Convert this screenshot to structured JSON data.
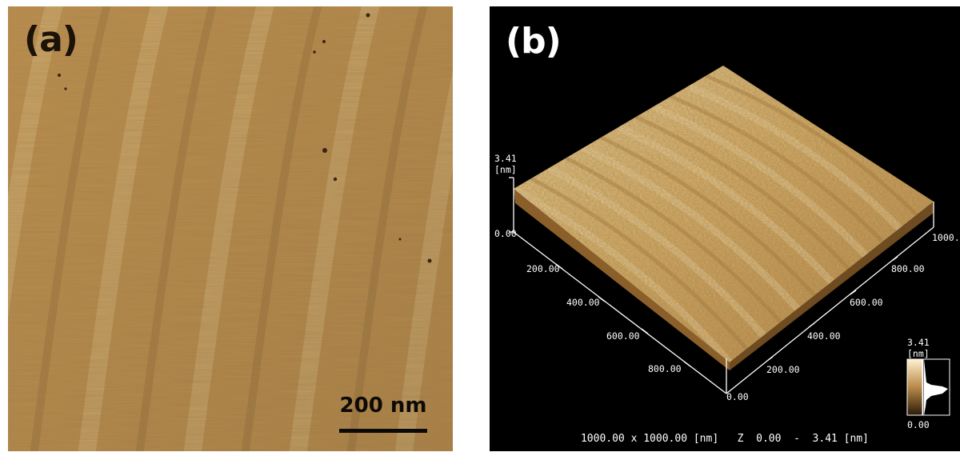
{
  "panel_a": {
    "label": "(a)",
    "scale_bar_label": "200 nm",
    "colors": {
      "base": "#c2924f",
      "light": "#e0bd80",
      "dark": "#8e6430"
    }
  },
  "panel_b": {
    "label": "(b)",
    "z_top_value": "3.41",
    "z_top_unit": "[nm]",
    "z_bottom_value": "0.00",
    "left_axis_ticks": [
      "200.00",
      "400.00",
      "600.00",
      "800.00"
    ],
    "right_axis_ticks": [
      "200.00",
      "400.00",
      "600.00",
      "800.00",
      "1000."
    ],
    "origin_label": "0.00",
    "colorbar": {
      "max_value": "3.41",
      "max_unit": "[nm]",
      "min_value": "0.00"
    },
    "caption_size": "1000.00 x 1000.00 [nm]",
    "caption_range": "Z  0.00  -  3.41 [nm]",
    "colors": {
      "background": "#000000",
      "surface_light": "#e8c98e",
      "surface_dark": "#9a6c32"
    }
  }
}
